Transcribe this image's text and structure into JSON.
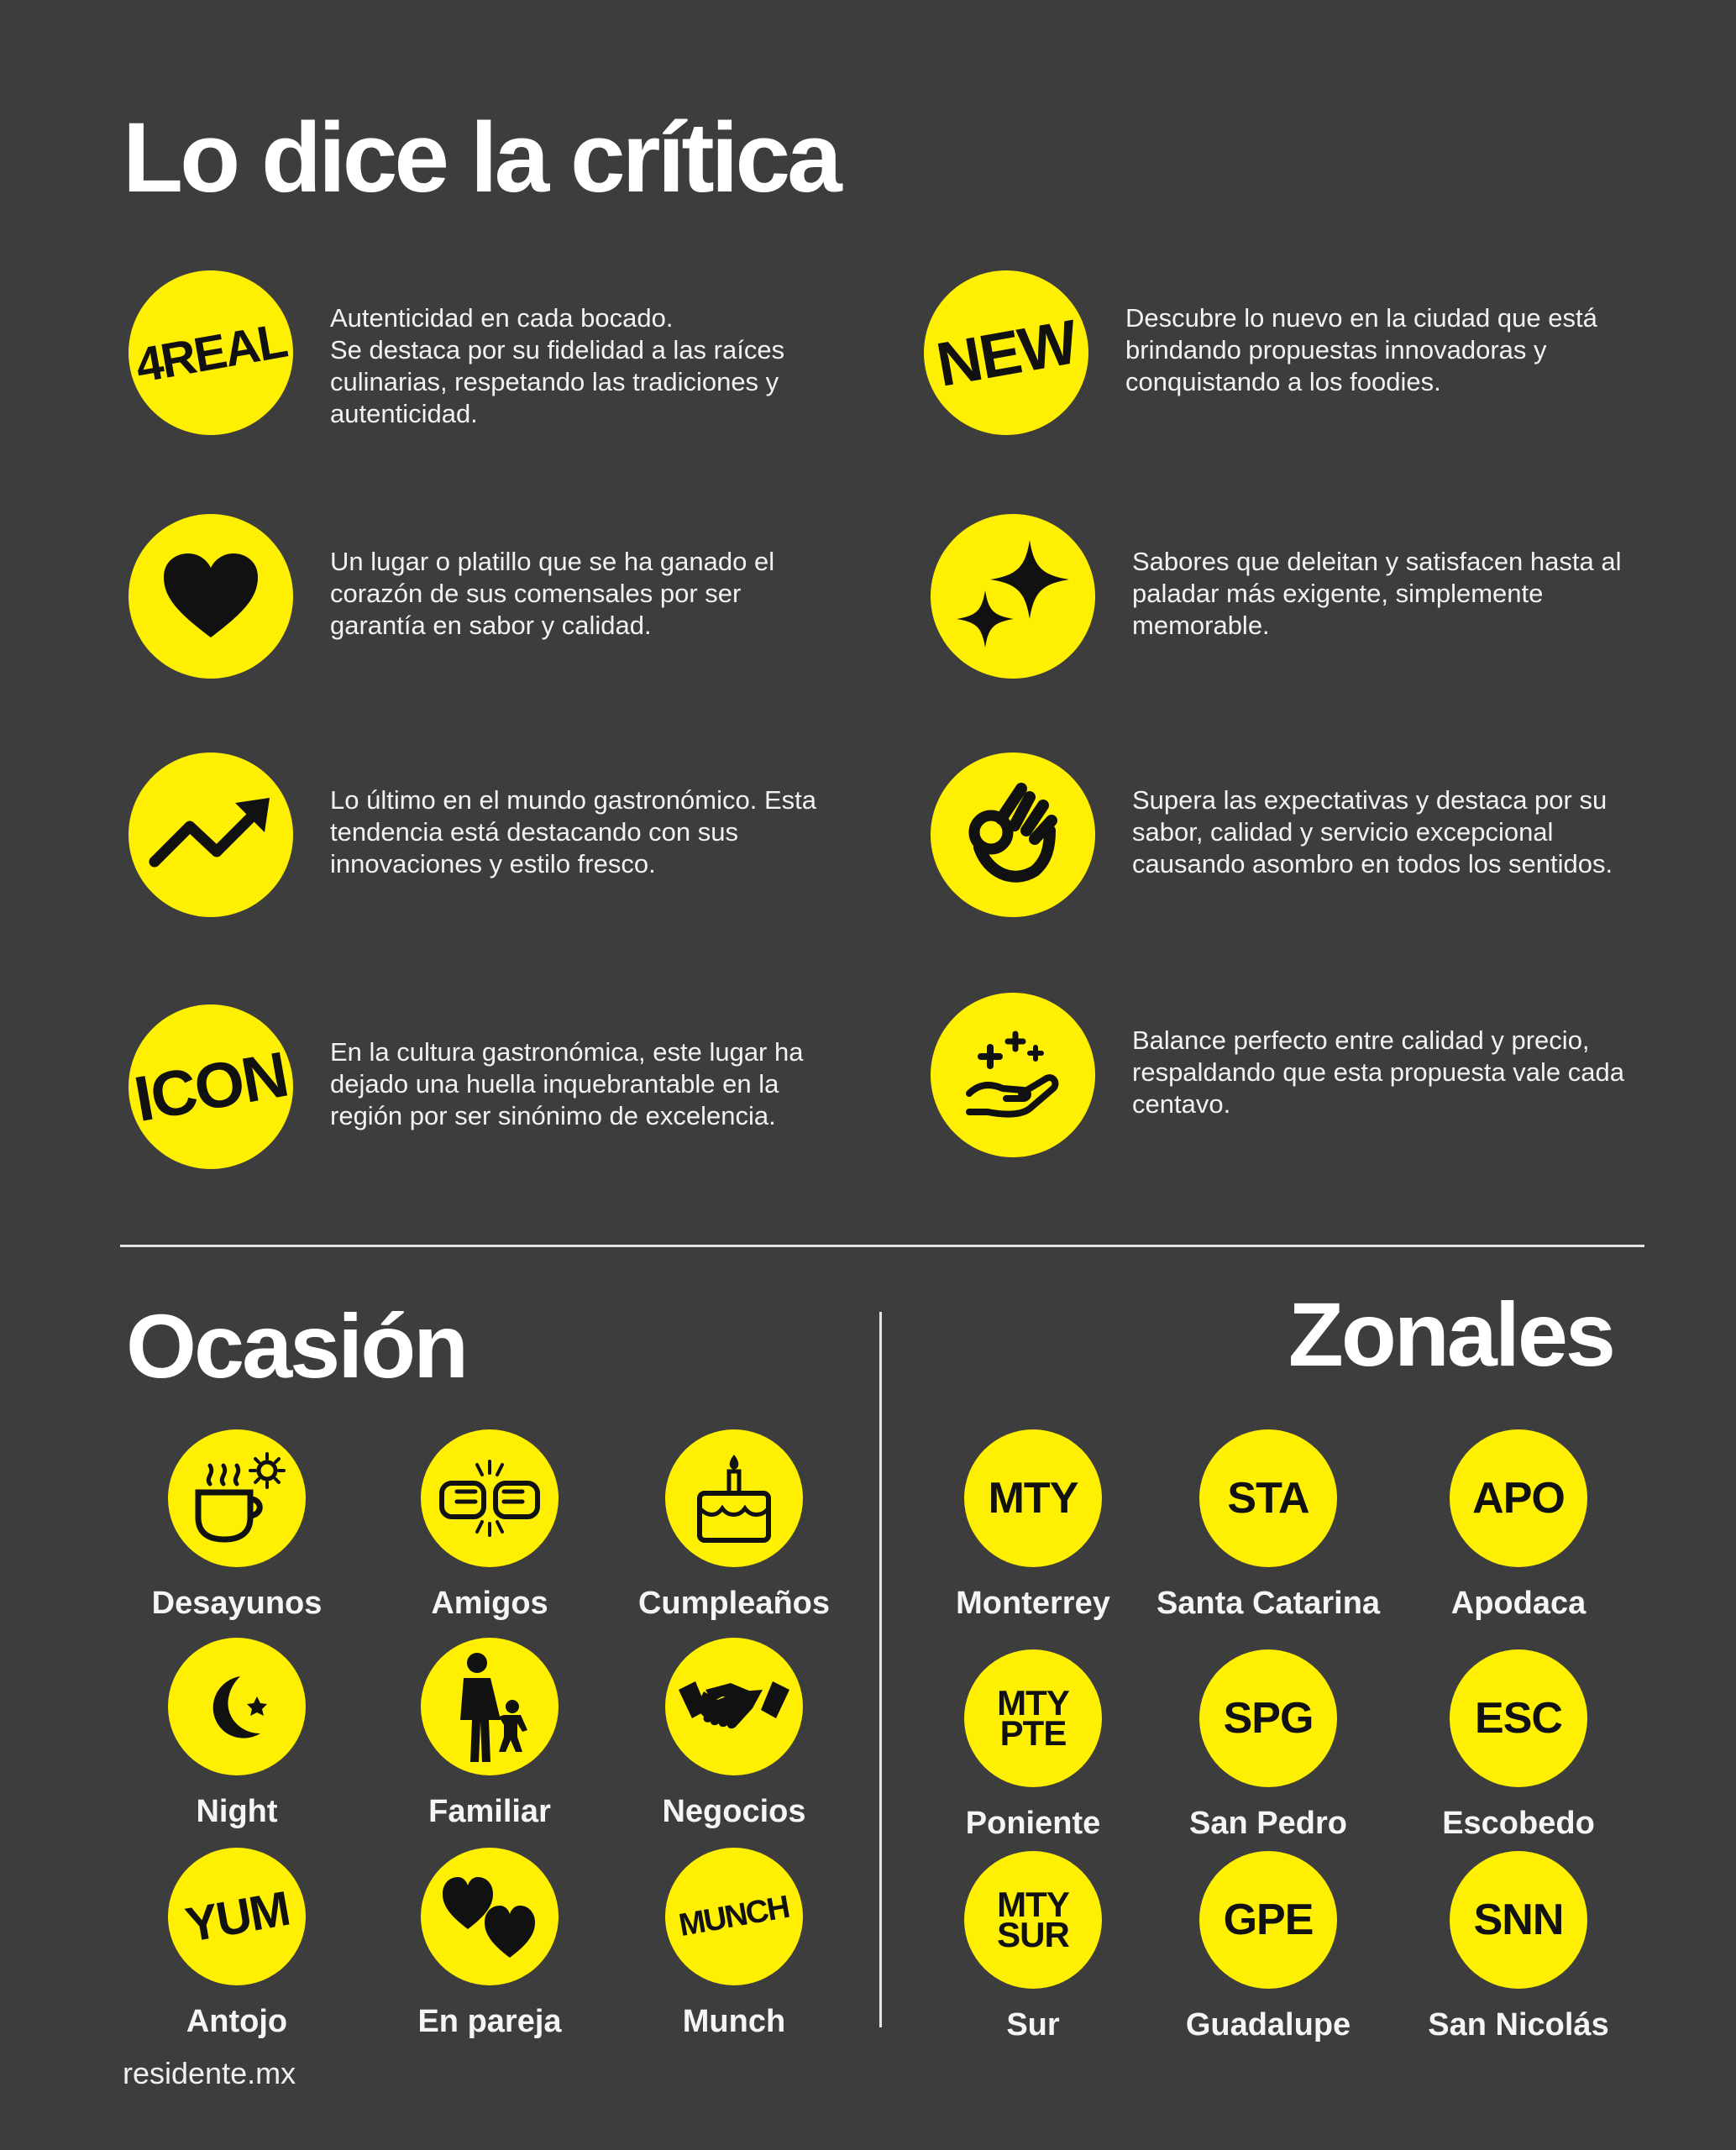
{
  "title": "Lo dice la crítica",
  "critica": [
    {
      "icon": "4real-badge-icon",
      "badge": "4REAL",
      "text": "Autenticidad en cada bocado.\nSe destaca por su fidelidad a las raíces culinarias, respetando las tradiciones y autenticidad."
    },
    {
      "icon": "new-badge-icon",
      "badge": "NEW",
      "text": "Descubre lo nuevo en la ciudad que está brindando propuestas innovadoras y conquistando a los foodies."
    },
    {
      "icon": "heart-icon",
      "text": "Un lugar o platillo que se ha ganado el corazón de sus comensales por ser garantía en sabor y calidad."
    },
    {
      "icon": "sparkles-icon",
      "text": "Sabores que deleitan y satisfacen hasta al paladar más exigente, simplemente memorable."
    },
    {
      "icon": "trending-up-icon",
      "text": "Lo último en el mundo gastronómico. Esta tendencia está destacando con sus innovaciones y estilo fresco."
    },
    {
      "icon": "ok-hand-icon",
      "text": "Supera las expectativas y destaca por su sabor, calidad y servicio excepcional causando asombro en todos los sentidos."
    },
    {
      "icon": "icon-badge-icon",
      "badge": "ICON",
      "text": "En la cultura gastronómica, este lugar ha dejado una huella inquebrantable en la región por ser sinónimo de excelencia."
    },
    {
      "icon": "hand-sparkles-icon",
      "text": "Balance perfecto entre calidad y precio, respaldando que esta propuesta vale cada centavo."
    }
  ],
  "ocasion": {
    "title": "Ocasión",
    "items": [
      {
        "icon": "coffee-sun-icon",
        "label": "Desayunos"
      },
      {
        "icon": "fist-bump-icon",
        "label": "Amigos"
      },
      {
        "icon": "birthday-cake-icon",
        "label": "Cumpleaños"
      },
      {
        "icon": "moon-star-icon",
        "label": "Night"
      },
      {
        "icon": "family-icon",
        "label": "Familiar"
      },
      {
        "icon": "handshake-icon",
        "label": "Negocios"
      },
      {
        "icon": "yum-badge-icon",
        "badge": "YUM",
        "label": "Antojo"
      },
      {
        "icon": "two-hearts-icon",
        "label": "En pareja"
      },
      {
        "icon": "munch-badge-icon",
        "badge": "MUNCH",
        "label": "Munch"
      }
    ]
  },
  "zonales": {
    "title": "Zonales",
    "items": [
      {
        "code": "MTY",
        "label": "Monterrey"
      },
      {
        "code": "STA",
        "label": "Santa Catarina"
      },
      {
        "code": "APO",
        "label": "Apodaca"
      },
      {
        "code": "MTY PTE",
        "label": "Poniente"
      },
      {
        "code": "SPG",
        "label": "San Pedro"
      },
      {
        "code": "ESC",
        "label": "Escobedo"
      },
      {
        "code": "MTY SUR",
        "label": "Sur"
      },
      {
        "code": "GPE",
        "label": "Guadalupe"
      },
      {
        "code": "SNN",
        "label": "San Nicolás"
      }
    ]
  },
  "footer": "residente.mx",
  "colors": {
    "background": "#3d3d3d",
    "accent": "#ffef00",
    "text": "#ffffff",
    "icon": "#111111"
  }
}
